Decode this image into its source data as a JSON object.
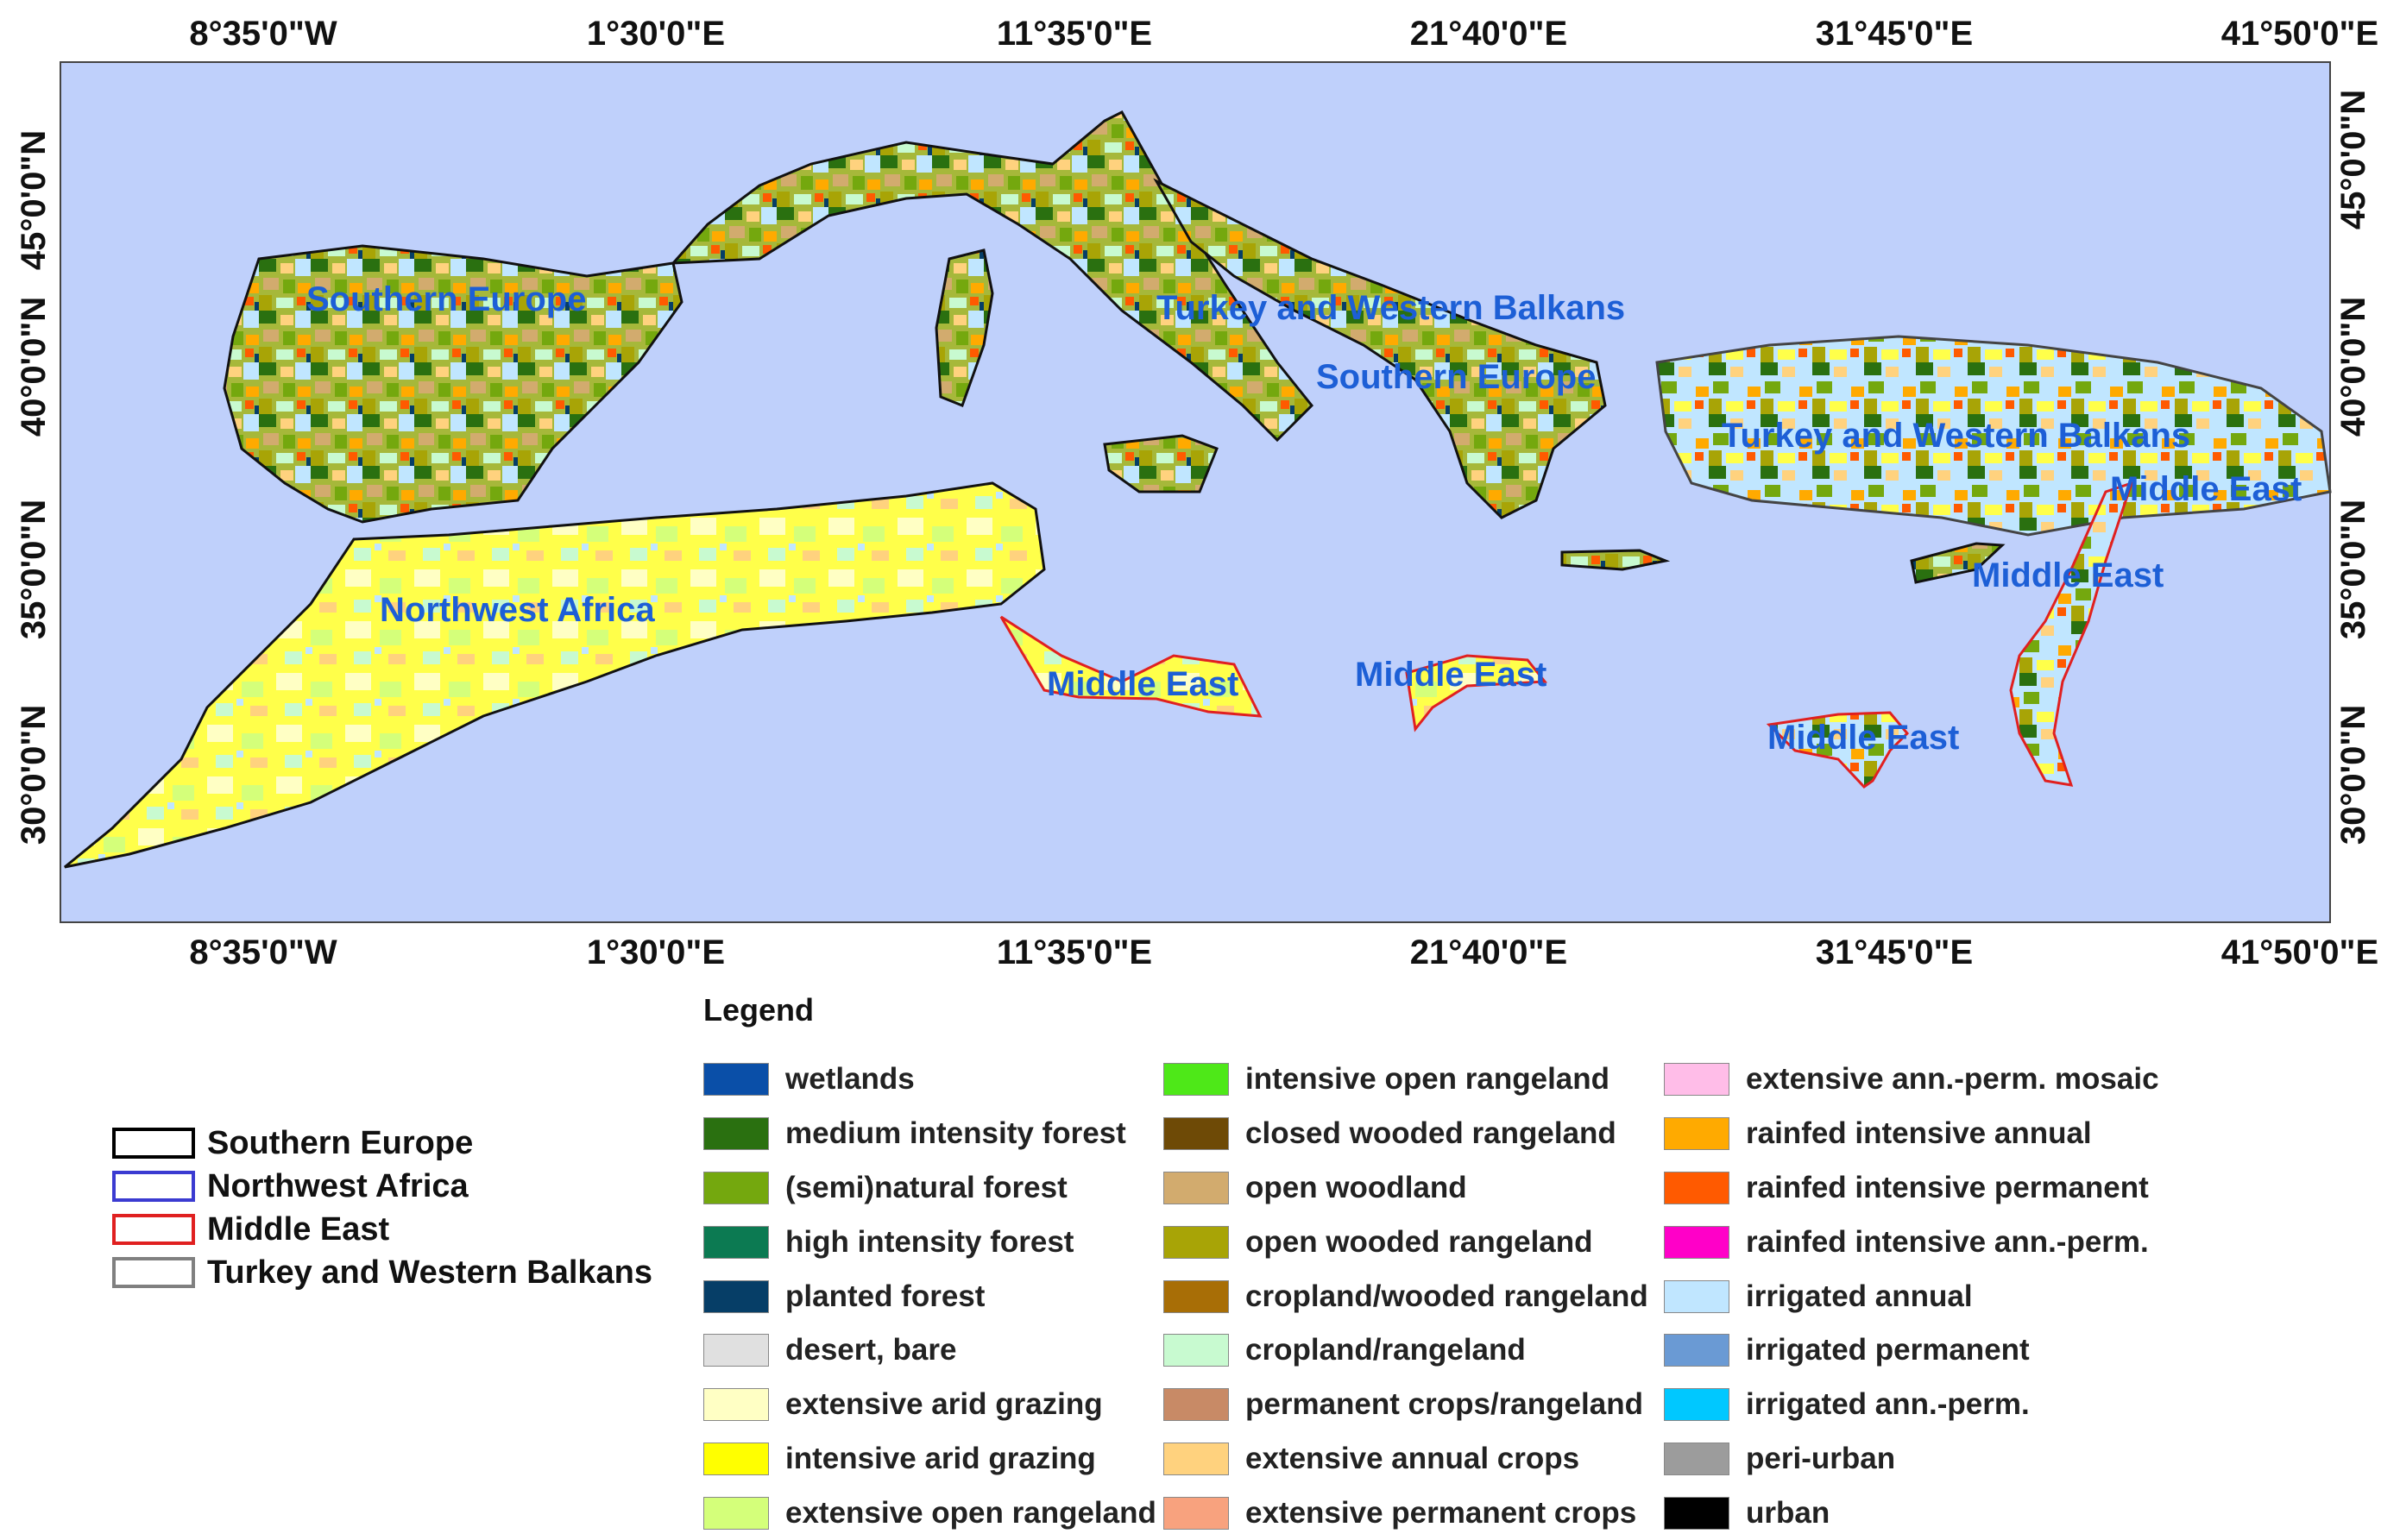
{
  "map": {
    "sea_color": "#bfd0fb",
    "top_axis_labels": [
      "8°35'0\"W",
      "1°30'0\"E",
      "11°35'0\"E",
      "21°40'0\"E",
      "31°45'0\"E",
      "41°50'0\"E"
    ],
    "bottom_axis_labels": [
      "8°35'0\"W",
      "1°30'0\"E",
      "11°35'0\"E",
      "21°40'0\"E",
      "31°45'0\"E",
      "41°50'0\"E"
    ],
    "left_axis_labels": [
      "45°0'0\"N",
      "40°0'0\"N",
      "35°0'0\"N",
      "30°0'0\"N"
    ],
    "right_axis_labels": [
      "45°0'0\"N",
      "40°0'0\"N",
      "35°0'0\"N",
      "30°0'0\"N"
    ],
    "region_labels": [
      "Southern Europe",
      "Turkey and Western Balkans",
      "Southern Europe",
      "Turkey and Western Balkans",
      "Middle East",
      "Northwest Africa",
      "Middle East",
      "Middle East",
      "Middle East",
      "Middle East"
    ]
  },
  "region_legend": [
    {
      "label": "Southern Europe",
      "border_color": "#000000"
    },
    {
      "label": "Northwest Africa",
      "border_color": "#3b3bd1"
    },
    {
      "label": "Middle East",
      "border_color": "#e02020"
    },
    {
      "label": "Turkey and Western Balkans",
      "border_color": "#808080"
    }
  ],
  "legend": {
    "title": "Legend",
    "columns": [
      [
        {
          "label": "wetlands",
          "color": "#0a4fa8"
        },
        {
          "label": "medium intensity forest",
          "color": "#2a7010"
        },
        {
          "label": "(semi)natural forest",
          "color": "#74a80e"
        },
        {
          "label": "high intensity forest",
          "color": "#0c7a52"
        },
        {
          "label": "planted forest",
          "color": "#063e67"
        },
        {
          "label": "desert, bare",
          "color": "#e0e0e0"
        },
        {
          "label": "extensive arid grazing",
          "color": "#ffffc4"
        },
        {
          "label": "intensive arid grazing",
          "color": "#ffff00"
        },
        {
          "label": "extensive open rangeland",
          "color": "#d4ff7a"
        }
      ],
      [
        {
          "label": "intensive open rangeland",
          "color": "#4ee818"
        },
        {
          "label": "closed wooded rangeland",
          "color": "#6e4a06"
        },
        {
          "label": "open woodland",
          "color": "#d2ab6e"
        },
        {
          "label": "open wooded rangeland",
          "color": "#a8a406"
        },
        {
          "label": "cropland/wooded rangeland",
          "color": "#a86e06"
        },
        {
          "label": "cropland/rangeland",
          "color": "#c8fad0"
        },
        {
          "label": "permanent crops/rangeland",
          "color": "#c88a66"
        },
        {
          "label": "extensive annual crops",
          "color": "#ffd27e"
        },
        {
          "label": "extensive permanent crops",
          "color": "#f8a27e"
        }
      ],
      [
        {
          "label": "extensive ann.-perm. mosaic",
          "color": "#ffbde8"
        },
        {
          "label": "rainfed intensive annual",
          "color": "#ffaa00"
        },
        {
          "label": "rainfed intensive permanent",
          "color": "#ff5a00"
        },
        {
          "label": "rainfed intensive ann.-perm.",
          "color": "#ff00c8"
        },
        {
          "label": "irrigated annual",
          "color": "#c0e6ff"
        },
        {
          "label": "irrigated permanent",
          "color": "#6a9ad4"
        },
        {
          "label": "irrigated ann.-perm.",
          "color": "#00c8ff"
        },
        {
          "label": "peri-urban",
          "color": "#9c9c9c"
        },
        {
          "label": "urban",
          "color": "#000000"
        }
      ]
    ]
  }
}
